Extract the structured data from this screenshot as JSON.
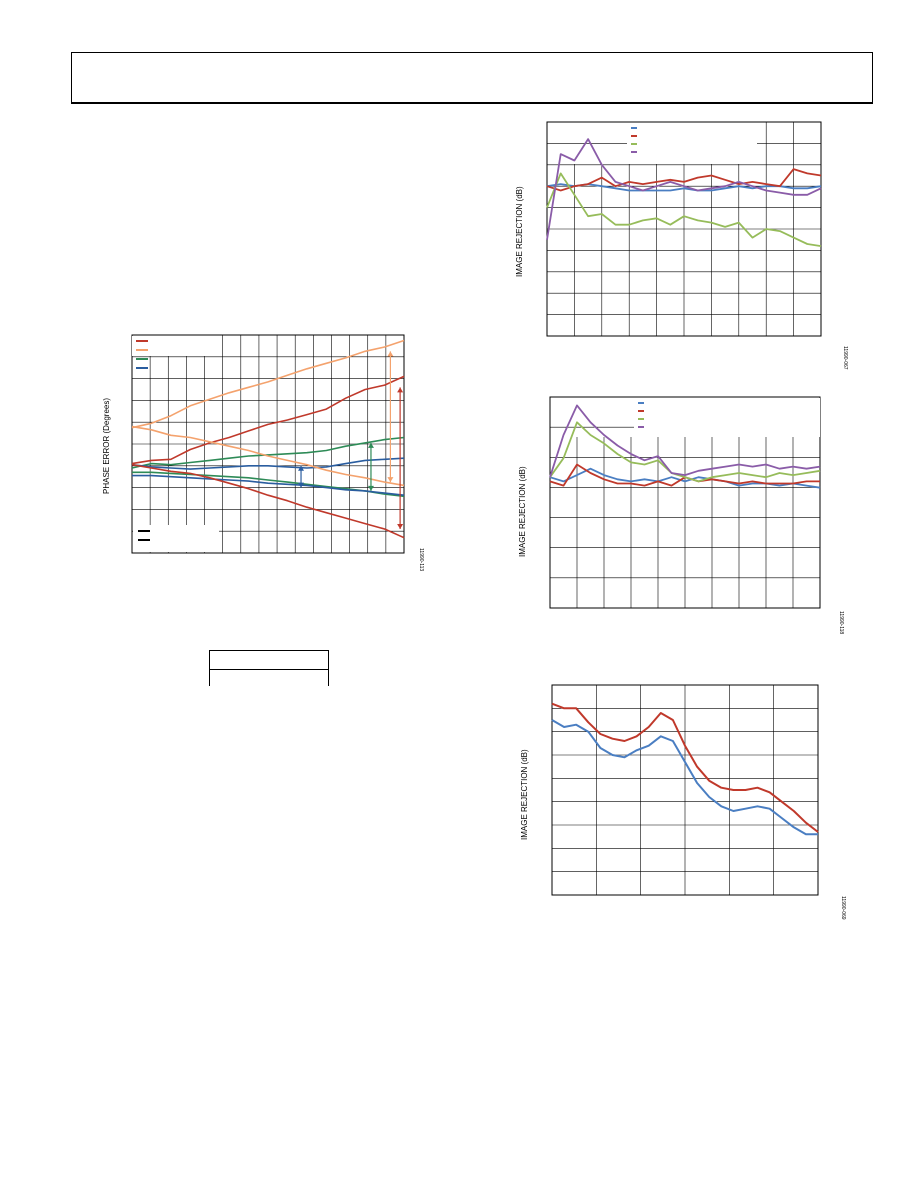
{
  "page": {
    "header": ""
  },
  "chart_data": [
    {
      "id": "phase-error",
      "type": "line",
      "title": "",
      "xlabel": "",
      "ylabel": "PHASE ERROR (Degrees)",
      "figure_id": "11990-113",
      "grid": true,
      "legend": "top-left (entries unreadable)",
      "x": [
        0,
        1,
        2,
        3,
        4,
        5,
        6,
        7,
        8,
        9,
        10,
        11,
        12,
        13,
        14
      ],
      "xlim": [
        0,
        14
      ],
      "ylim": [
        -4,
        6
      ],
      "series": [
        {
          "color": "#c0392b",
          "values": [
            0.1,
            0.25,
            0.3,
            0.75,
            1.05,
            1.3,
            1.6,
            1.9,
            2.1,
            2.35,
            2.6,
            3.1,
            3.5,
            3.7,
            4.1
          ]
        },
        {
          "color": "#f4a26d",
          "values": [
            1.75,
            1.95,
            2.3,
            2.75,
            3.05,
            3.35,
            3.6,
            3.85,
            4.15,
            4.45,
            4.7,
            4.95,
            5.25,
            5.45,
            5.75
          ]
        },
        {
          "color": "#2e8b57",
          "values": [
            -0.1,
            0.1,
            0.05,
            0.15,
            0.25,
            0.35,
            0.45,
            0.5,
            0.55,
            0.6,
            0.7,
            0.9,
            1.05,
            1.2,
            1.3
          ]
        },
        {
          "color": "#2a5d9f",
          "values": [
            0.05,
            -0.05,
            -0.1,
            -0.15,
            -0.1,
            -0.05,
            0,
            0,
            -0.05,
            -0.1,
            -0.05,
            0.1,
            0.25,
            0.3,
            0.35
          ]
        },
        {
          "color": "#2e8b57",
          "values": [
            -0.3,
            -0.3,
            -0.35,
            -0.4,
            -0.45,
            -0.5,
            -0.55,
            -0.65,
            -0.75,
            -0.85,
            -0.95,
            -1.05,
            -1.15,
            -1.3,
            -1.4
          ]
        },
        {
          "color": "#2a5d9f",
          "values": [
            -0.45,
            -0.45,
            -0.5,
            -0.55,
            -0.6,
            -0.65,
            -0.7,
            -0.8,
            -0.85,
            -0.9,
            -1,
            -1.1,
            -1.15,
            -1.25,
            -1.35
          ]
        },
        {
          "color": "#f4a26d",
          "values": [
            1.8,
            1.65,
            1.4,
            1.3,
            1.1,
            0.9,
            0.7,
            0.45,
            0.25,
            0.05,
            -0.2,
            -0.4,
            -0.55,
            -0.75,
            -0.9
          ]
        },
        {
          "color": "#c0392b",
          "values": [
            0.05,
            -0.1,
            -0.25,
            -0.35,
            -0.55,
            -0.8,
            -1.05,
            -1.35,
            -1.6,
            -1.9,
            -2.15,
            -2.4,
            -2.65,
            -2.9,
            -3.3
          ]
        }
      ]
    },
    {
      "id": "image-rejection-1",
      "type": "line",
      "title": "",
      "xlabel": "",
      "ylabel": "IMAGE REJECTION (dB)",
      "figure_id": "11990-067",
      "grid": true,
      "legend": "top-center (entries unreadable)",
      "x": [
        0,
        1,
        2,
        3,
        4,
        5,
        6,
        7,
        8,
        9,
        10,
        11,
        12,
        13,
        14,
        15,
        16,
        17,
        18,
        19,
        20
      ],
      "xlim": [
        0,
        20
      ],
      "ylim": [
        0,
        100
      ],
      "series": [
        {
          "color": "#4a7ec2",
          "values": [
            70,
            71,
            70,
            71,
            70,
            69,
            68,
            68,
            68,
            68,
            69,
            68,
            68,
            69,
            70,
            69,
            70,
            70,
            69,
            69,
            70
          ]
        },
        {
          "color": "#c0392b",
          "values": [
            70,
            68,
            70,
            71,
            74,
            70,
            72,
            71,
            72,
            73,
            72,
            74,
            75,
            73,
            71,
            72,
            71,
            70,
            78,
            76,
            75
          ]
        },
        {
          "color": "#96bc5a",
          "values": [
            60,
            76,
            66,
            56,
            57,
            52,
            52,
            54,
            55,
            52,
            56,
            54,
            53,
            51,
            53,
            46,
            50,
            49,
            46,
            43,
            42
          ]
        },
        {
          "color": "#8a5ca8",
          "values": [
            45,
            85,
            82,
            92,
            80,
            72,
            70,
            68,
            70,
            72,
            70,
            68,
            69,
            70,
            72,
            70,
            68,
            67,
            66,
            66,
            69
          ]
        }
      ]
    },
    {
      "id": "image-rejection-2",
      "type": "line",
      "title": "",
      "xlabel": "",
      "ylabel": "IMAGE REJECTION (dB)",
      "figure_id": "11990-118",
      "grid": true,
      "legend": "top-center (entries unreadable)",
      "x": [
        0,
        1,
        2,
        3,
        4,
        5,
        6,
        7,
        8,
        9,
        10,
        11,
        12,
        13,
        14,
        15,
        16,
        17,
        18,
        19,
        20
      ],
      "xlim": [
        0,
        20
      ],
      "ylim": [
        0,
        100
      ],
      "series": [
        {
          "color": "#4a7ec2",
          "values": [
            62,
            60,
            63,
            66,
            63,
            61,
            60,
            61,
            60,
            62,
            60,
            62,
            61,
            60,
            58,
            59,
            59,
            58,
            59,
            58,
            57
          ]
        },
        {
          "color": "#c0392b",
          "values": [
            60,
            58,
            68,
            64,
            61,
            59,
            59,
            58,
            60,
            58,
            62,
            60,
            61,
            60,
            59,
            60,
            59,
            59,
            59,
            60,
            60
          ]
        },
        {
          "color": "#96bc5a",
          "values": [
            62,
            71,
            88,
            82,
            78,
            73,
            69,
            68,
            70,
            64,
            62,
            60,
            62,
            63,
            64,
            63,
            62,
            64,
            63,
            64,
            65
          ]
        },
        {
          "color": "#8a5ca8",
          "values": [
            62,
            82,
            96,
            88,
            82,
            77,
            73,
            70,
            72,
            64,
            63,
            65,
            66,
            67,
            68,
            67,
            68,
            66,
            67,
            66,
            67
          ]
        }
      ]
    },
    {
      "id": "image-rejection-3",
      "type": "line",
      "title": "",
      "xlabel": "",
      "ylabel": "IMAGE REJECTION (dB)",
      "figure_id": "11990-069",
      "grid": true,
      "legend": "",
      "x": [
        0,
        1,
        2,
        3,
        4,
        5,
        6,
        7,
        8,
        9,
        10,
        11,
        12,
        13,
        14,
        15,
        16,
        17,
        18,
        19,
        20,
        21,
        22
      ],
      "xlim": [
        0,
        22
      ],
      "ylim": [
        0,
        90
      ],
      "series": [
        {
          "color": "#c0392b",
          "values": [
            82,
            80,
            80,
            74,
            69,
            67,
            66,
            68,
            72,
            78,
            75,
            64,
            55,
            49,
            46,
            45,
            45,
            46,
            44,
            40,
            36,
            31,
            27
          ]
        },
        {
          "color": "#4a7ec2",
          "values": [
            75,
            72,
            73,
            70,
            63,
            60,
            59,
            62,
            64,
            68,
            66,
            57,
            48,
            42,
            38,
            36,
            37,
            38,
            37,
            33,
            29,
            26,
            26
          ]
        }
      ]
    }
  ]
}
